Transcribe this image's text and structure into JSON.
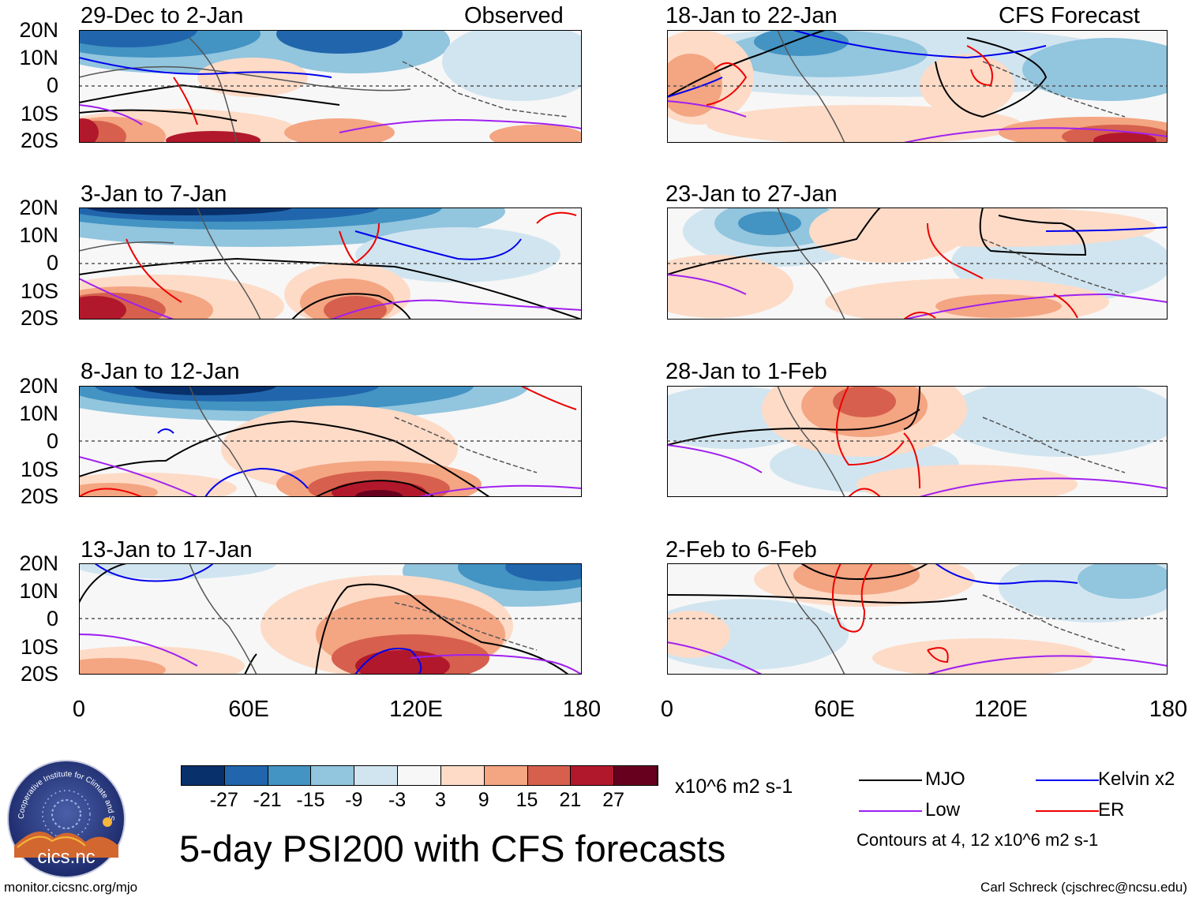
{
  "figure": {
    "title": "5-day PSI200 with CFS forecasts",
    "website": "monitor.cicsnc.org/mjo",
    "credit": "Carl Schreck (cjschrec@ncsu.edu)",
    "logo_text": "cics.nc",
    "logo_ring_text": "Cooperative Institute for Climate and Satellites"
  },
  "column_headers": {
    "left": "Observed",
    "right": "CFS Forecast"
  },
  "panels_left": [
    {
      "title": "29-Dec to 2-Jan"
    },
    {
      "title": "3-Jan to 7-Jan"
    },
    {
      "title": "8-Jan to 12-Jan"
    },
    {
      "title": "13-Jan to 17-Jan"
    }
  ],
  "panels_right": [
    {
      "title": "18-Jan to 22-Jan"
    },
    {
      "title": "23-Jan to 27-Jan"
    },
    {
      "title": "28-Jan to 1-Feb"
    },
    {
      "title": "2-Feb to 6-Feb"
    }
  ],
  "axes": {
    "lat_labels": [
      "20N",
      "10N",
      "0",
      "10S",
      "20S"
    ],
    "lon_labels": [
      "0",
      "60E",
      "120E",
      "180"
    ]
  },
  "colorbar": {
    "units": "x10^6 m2 s-1",
    "labels": [
      "-27",
      "-21",
      "-15",
      "-9",
      "-3",
      "3",
      "9",
      "15",
      "21",
      "27"
    ],
    "colors": [
      "#08306b",
      "#2166ac",
      "#4393c3",
      "#92c5de",
      "#d1e5f0",
      "#f7f7f7",
      "#fddbc7",
      "#f4a582",
      "#d6604d",
      "#b2182b",
      "#67001f"
    ]
  },
  "legend": {
    "items": [
      {
        "label": "MJO",
        "color": "#000000"
      },
      {
        "label": "Kelvin x2",
        "color": "#0000ee"
      },
      {
        "label": "Low",
        "color": "#a020f0"
      },
      {
        "label": "ER",
        "color": "#ee0000"
      }
    ],
    "note": "Contours at 4, 12 x10^6 m2 s-1"
  },
  "colors": {
    "coast": "#555555",
    "equator": "#555555",
    "mjo": "#000000",
    "kelvin": "#0000ee",
    "low": "#a020f0",
    "er": "#ee0000"
  }
}
